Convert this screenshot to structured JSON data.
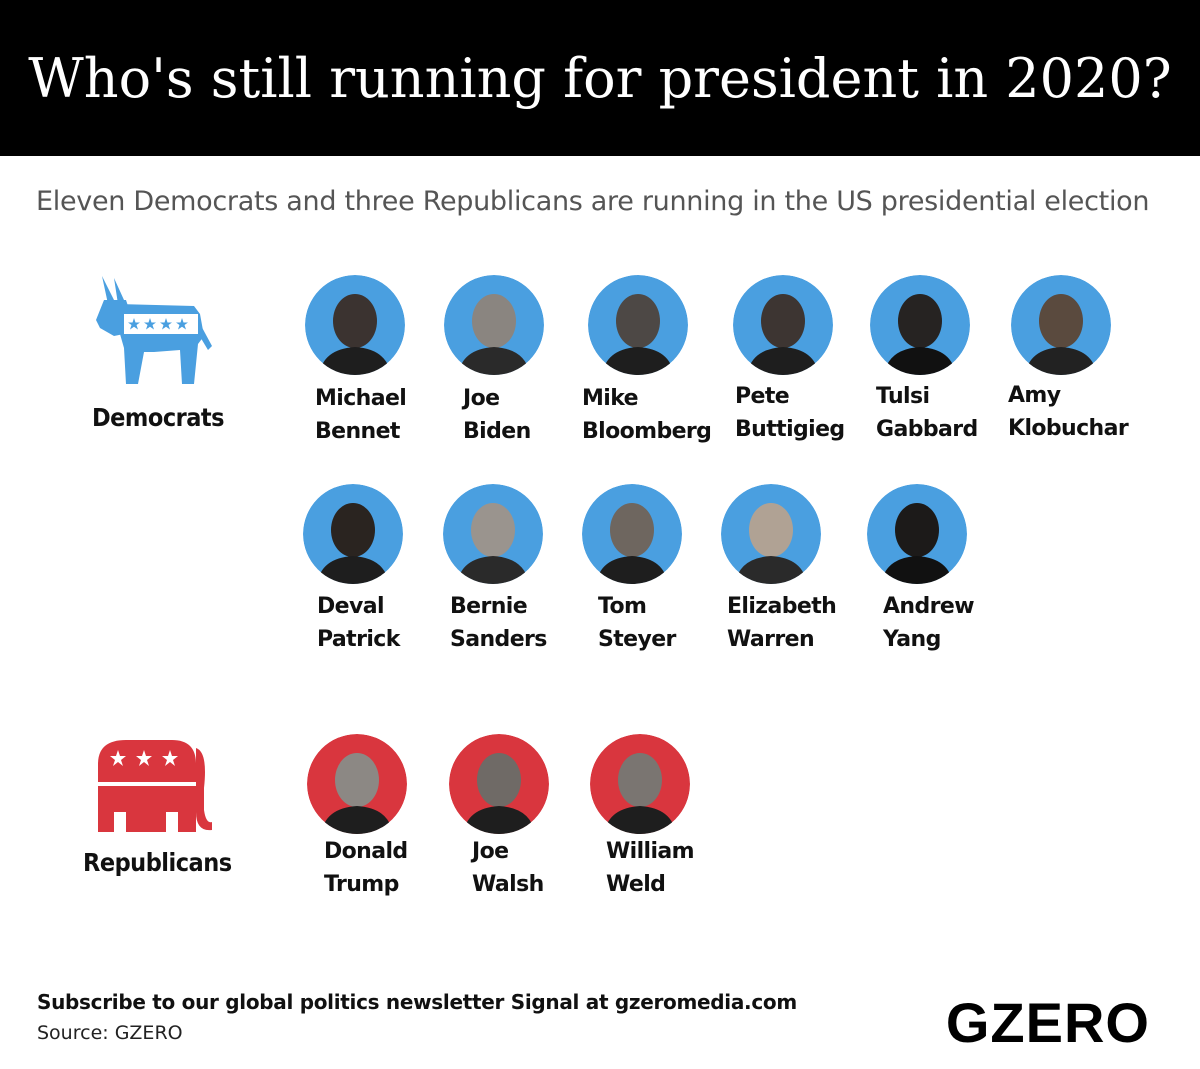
{
  "title": "Who's still running for president in 2020?",
  "subtitle": "Eleven Democrats and three Republicans are running in the US presidential election",
  "colors": {
    "democrat": "#4a9fe0",
    "republican": "#d9363e",
    "header_bg": "#000000"
  },
  "democrats": {
    "label": "Democrats",
    "icon": "donkey-icon",
    "candidates": [
      {
        "first": "Michael",
        "last": "Bennet"
      },
      {
        "first": "Joe",
        "last": "Biden"
      },
      {
        "first": "Mike",
        "last": "Bloomberg"
      },
      {
        "first": "Pete",
        "last": "Buttigieg"
      },
      {
        "first": "Tulsi",
        "last": "Gabbard"
      },
      {
        "first": "Amy",
        "last": "Klobuchar"
      },
      {
        "first": "Deval",
        "last": "Patrick"
      },
      {
        "first": "Bernie",
        "last": "Sanders"
      },
      {
        "first": "Tom",
        "last": "Steyer"
      },
      {
        "first": "Elizabeth",
        "last": "Warren"
      },
      {
        "first": "Andrew",
        "last": "Yang"
      }
    ]
  },
  "republicans": {
    "label": "Republicans",
    "icon": "elephant-icon",
    "candidates": [
      {
        "first": "Donald",
        "last": "Trump"
      },
      {
        "first": "Joe",
        "last": "Walsh"
      },
      {
        "first": "William",
        "last": "Weld"
      }
    ]
  },
  "footer": {
    "subscribe": "Subscribe to our global politics newsletter Signal at gzeromedia.com",
    "source": "Source: GZERO",
    "logo": "GZERO"
  }
}
